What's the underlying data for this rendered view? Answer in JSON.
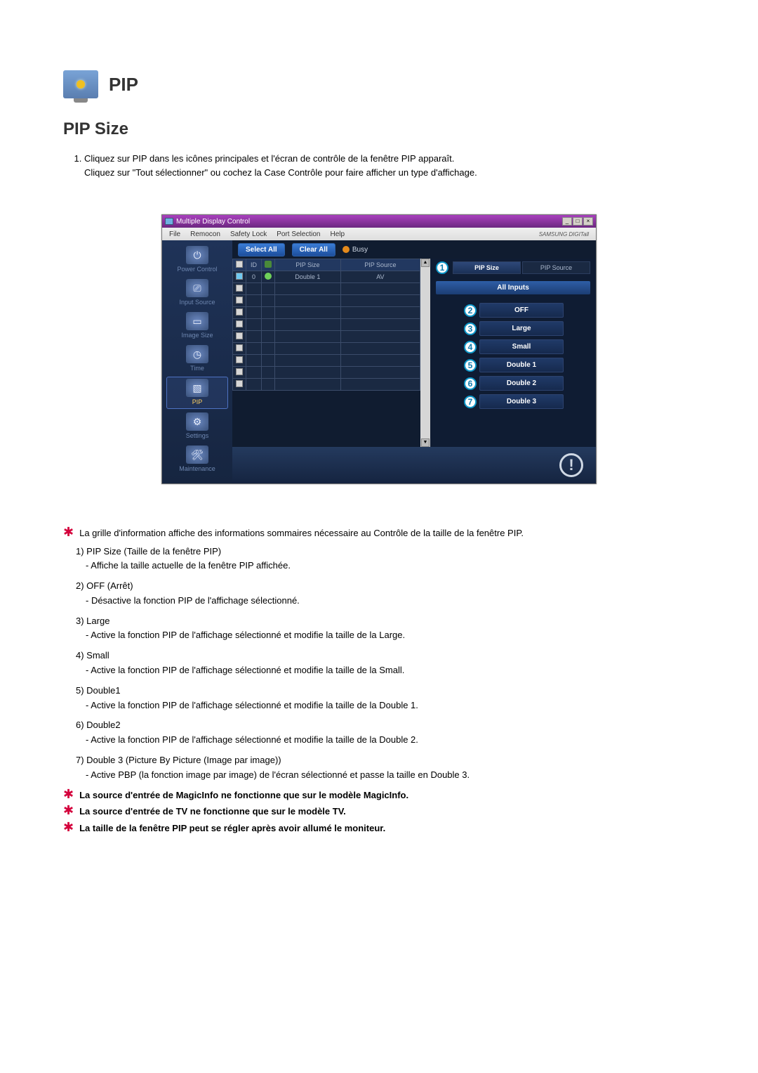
{
  "header": {
    "title": "PIP",
    "subtitle": "PIP Size"
  },
  "intro_list": [
    "Cliquez sur PIP dans les icônes principales et l'écran de contrôle de la fenêtre PIP apparaît.\nCliquez sur \"Tout sélectionner\" ou cochez la Case Contrôle pour faire afficher un type d'affichage."
  ],
  "app": {
    "title": "Multiple Display Control",
    "brand": "SAMSUNG DIGITall",
    "menubar": [
      "File",
      "Remocon",
      "Safety Lock",
      "Port Selection",
      "Help"
    ],
    "sidebar": [
      {
        "label": "Power Control",
        "glyph": "⏻"
      },
      {
        "label": "Input Source",
        "glyph": "⎚"
      },
      {
        "label": "Image Size",
        "glyph": "▭"
      },
      {
        "label": "Time",
        "glyph": "◷"
      },
      {
        "label": "PIP",
        "glyph": "▧",
        "active": true
      },
      {
        "label": "Settings",
        "glyph": "⚙"
      },
      {
        "label": "Maintenance",
        "glyph": "🛠"
      }
    ],
    "toolbar": {
      "select_all": "Select All",
      "clear_all": "Clear All",
      "busy": "Busy"
    },
    "grid": {
      "columns": [
        "",
        "ID",
        "",
        "PIP Size",
        "PIP Source"
      ],
      "rows": [
        {
          "checked": true,
          "id": "0",
          "status": true,
          "pip_size": "Double 1",
          "pip_source": "AV"
        },
        {
          "checked": false,
          "id": "",
          "status": false,
          "pip_size": "",
          "pip_source": ""
        },
        {
          "checked": false,
          "id": "",
          "status": false,
          "pip_size": "",
          "pip_source": ""
        },
        {
          "checked": false,
          "id": "",
          "status": false,
          "pip_size": "",
          "pip_source": ""
        },
        {
          "checked": false,
          "id": "",
          "status": false,
          "pip_size": "",
          "pip_source": ""
        },
        {
          "checked": false,
          "id": "",
          "status": false,
          "pip_size": "",
          "pip_source": ""
        },
        {
          "checked": false,
          "id": "",
          "status": false,
          "pip_size": "",
          "pip_source": ""
        },
        {
          "checked": false,
          "id": "",
          "status": false,
          "pip_size": "",
          "pip_source": ""
        },
        {
          "checked": false,
          "id": "",
          "status": false,
          "pip_size": "",
          "pip_source": ""
        },
        {
          "checked": false,
          "id": "",
          "status": false,
          "pip_size": "",
          "pip_source": ""
        }
      ]
    },
    "right_panel": {
      "tabs": {
        "pip_size": "PIP Size",
        "pip_source": "PIP Source"
      },
      "tab_badge": "1",
      "all_inputs": "All Inputs",
      "options": [
        {
          "num": "2",
          "label": "OFF"
        },
        {
          "num": "3",
          "label": "Large"
        },
        {
          "num": "4",
          "label": "Small"
        },
        {
          "num": "5",
          "label": "Double 1"
        },
        {
          "num": "6",
          "label": "Double 2"
        },
        {
          "num": "7",
          "label": "Double 3"
        }
      ]
    },
    "colors": {
      "titlebar_gradient": [
        "#a941be",
        "#6c2780"
      ],
      "body_bg": "#1b2a46",
      "sidebar_bg": [
        "#1f3358",
        "#162540"
      ],
      "main_bg": "#101c30",
      "pill_btn": [
        "#3a7cd6",
        "#1d4e9c"
      ],
      "grid_border": "#3b4c6a",
      "active_tab": [
        "#2e4879",
        "#1b3157"
      ],
      "badge_border": "#0e97c9",
      "all_inputs_bar": [
        "#2e5ea6",
        "#1c3d73"
      ]
    }
  },
  "notes": {
    "star1": "La grille d'information affiche des informations sommaires nécessaire au Contrôle de la taille de la fenêtre PIP.",
    "list": [
      {
        "n": "1)",
        "title": "PIP Size (Taille de la fenêtre PIP)",
        "subs": [
          "- Affiche la taille actuelle de la fenêtre PIP affichée."
        ]
      },
      {
        "n": "2)",
        "title": "OFF (Arrêt)",
        "subs": [
          "- Désactive la fonction PIP de l'affichage sélectionné."
        ]
      },
      {
        "n": "3)",
        "title": "Large",
        "subs": [
          "- Active la fonction PIP de l'affichage sélectionné et modifie la taille de la Large."
        ]
      },
      {
        "n": "4)",
        "title": "Small",
        "subs": [
          "- Active la fonction PIP de l'affichage sélectionné et modifie la taille de la Small."
        ]
      },
      {
        "n": "5)",
        "title": "Double1",
        "subs": [
          "- Active la fonction PIP de l'affichage sélectionné et modifie la taille de la Double 1."
        ]
      },
      {
        "n": "6)",
        "title": "Double2",
        "subs": [
          "- Active la fonction PIP de l'affichage sélectionné et modifie la taille de la Double 2."
        ]
      },
      {
        "n": "7)",
        "title": "Double 3 (Picture By Picture (Image par image))",
        "subs": [
          "- Active PBP (la fonction image par image) de l'écran sélectionné et passe la taille en Double 3."
        ]
      }
    ],
    "star2": "La source d'entrée de MagicInfo ne fonctionne que sur le modèle MagicInfo.",
    "star3": "La source d'entrée de TV ne fonctionne que sur le modèle TV.",
    "star4": "La taille de la fenêtre PIP peut se régler après avoir allumé le moniteur."
  }
}
